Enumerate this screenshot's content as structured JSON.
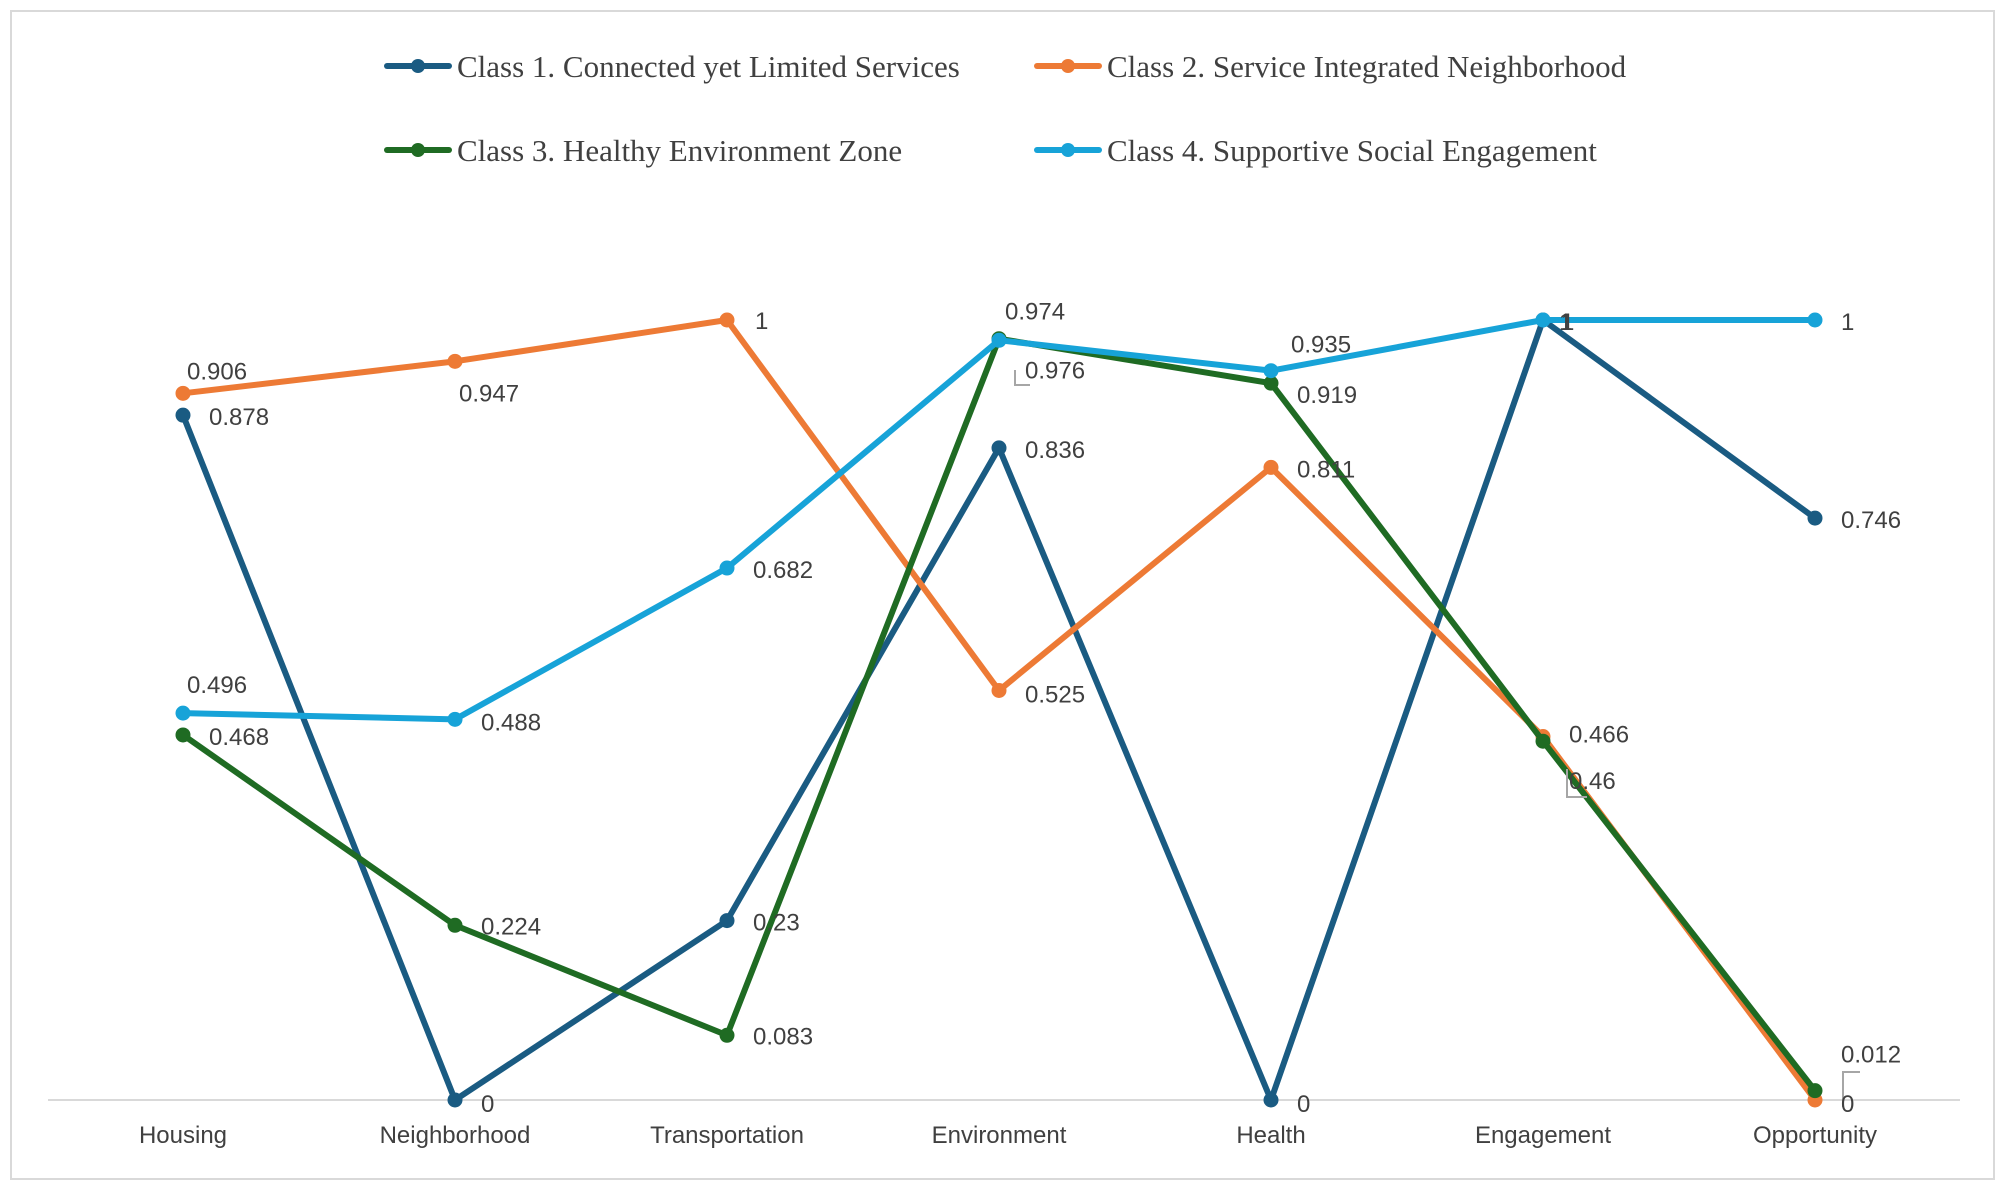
{
  "chart_data": {
    "type": "line",
    "title": "",
    "xlabel": "",
    "ylabel": "",
    "ylim": [
      0,
      1
    ],
    "grid": false,
    "legend_position": "top",
    "categories": [
      "Housing",
      "Neighborhood",
      "Transportation",
      "Environment",
      "Health",
      "Engagement",
      "Opportunity"
    ],
    "series": [
      {
        "name": "Class 1. Connected yet Limited Services",
        "color": "#1a5b82",
        "values": [
          0.878,
          0,
          0.23,
          0.836,
          0,
          1,
          0.746
        ],
        "labels": [
          "0.878",
          "0",
          "0.23",
          "0.836",
          "0",
          "1",
          "0.746"
        ]
      },
      {
        "name": "Class 2. Service Integrated Neighborhood",
        "color": "#ed7a35",
        "values": [
          0.906,
          0.947,
          1,
          0.525,
          0.811,
          0.466,
          0
        ],
        "labels": [
          "0.906",
          "0.947",
          "1",
          "0.525",
          "0.811",
          "0.466",
          "0"
        ]
      },
      {
        "name": "Class 3. Healthy Environment Zone",
        "color": "#1f6b23",
        "values": [
          0.468,
          0.224,
          0.083,
          0.976,
          0.919,
          0.46,
          0.012
        ],
        "labels": [
          "0.468",
          "0.224",
          "0.083",
          "0.976",
          "0.919",
          "0.46",
          "0.012"
        ]
      },
      {
        "name": "Class 4. Supportive Social Engagement",
        "color": "#17a3d8",
        "values": [
          0.496,
          0.488,
          0.682,
          0.974,
          0.935,
          1,
          1
        ],
        "labels": [
          "0.496",
          "0.488",
          "0.682",
          "0.974",
          "0.935",
          "1",
          "1"
        ]
      }
    ]
  }
}
